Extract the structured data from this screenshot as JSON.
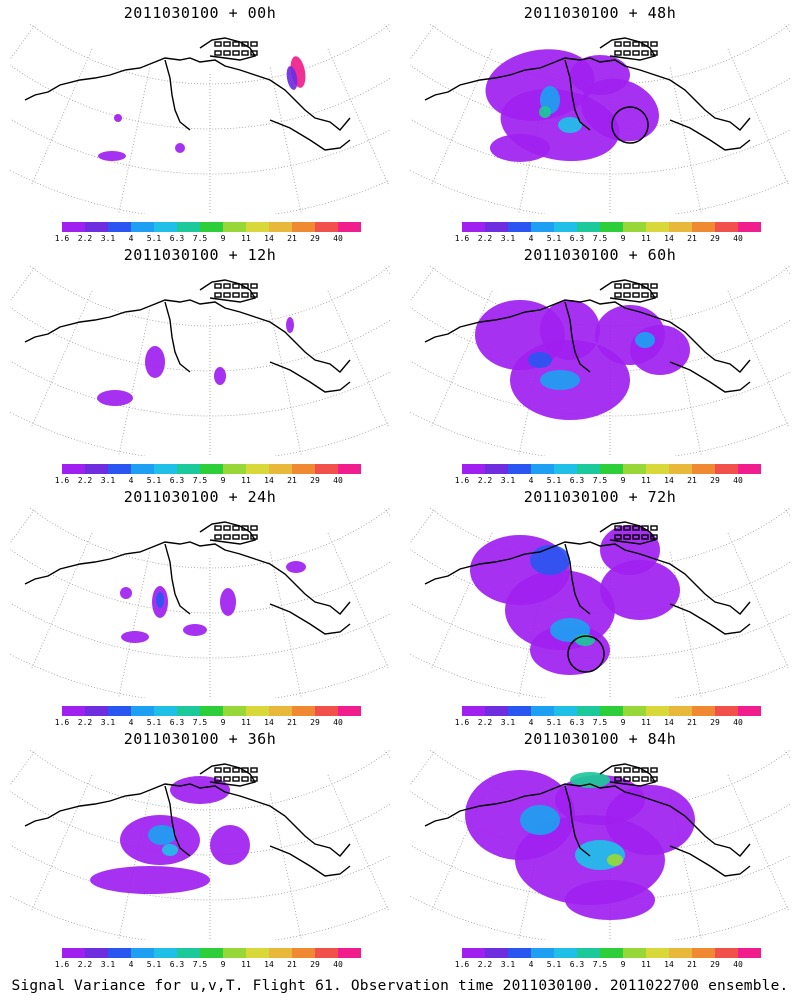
{
  "caption": "Signal Variance for u,v,T. Flight 61. Observation time 2011030100. 2011022700 ensemble.",
  "colorbar": {
    "labels": [
      "1.6",
      "2.2",
      "3.1",
      "4",
      "5.1",
      "6.3",
      "7.5",
      "9",
      "11",
      "14",
      "21",
      "29",
      "40"
    ],
    "colors": [
      "#a020f0",
      "#6f2de0",
      "#2a55f0",
      "#1e9ff2",
      "#1fbfe8",
      "#1dc89a",
      "#2ccf3a",
      "#97d838",
      "#d8d83a",
      "#e8b83a",
      "#f08a32",
      "#f2504a",
      "#f01e8c"
    ]
  },
  "chart_data": [
    {
      "type": "heatmap",
      "title": "2011030100 + 00h",
      "lead_hours": 0,
      "colorbar_labels": [
        "1.6",
        "2.2",
        "3.1",
        "4",
        "5.1",
        "6.3",
        "7.5",
        "9",
        "11",
        "14",
        "21",
        "29",
        "40"
      ],
      "max_variance_level": "40",
      "circled_feature": false
    },
    {
      "type": "heatmap",
      "title": "2011030100 + 48h",
      "lead_hours": 48,
      "colorbar_labels": [
        "1.6",
        "2.2",
        "3.1",
        "4",
        "5.1",
        "6.3",
        "7.5",
        "9",
        "11",
        "14",
        "21",
        "29",
        "40"
      ],
      "max_variance_level": "5.1",
      "circled_feature": true
    },
    {
      "type": "heatmap",
      "title": "2011030100 + 12h",
      "lead_hours": 12,
      "colorbar_labels": [
        "1.6",
        "2.2",
        "3.1",
        "4",
        "5.1",
        "6.3",
        "7.5",
        "9",
        "11",
        "14",
        "21",
        "29",
        "40"
      ],
      "max_variance_level": "1.6",
      "circled_feature": false
    },
    {
      "type": "heatmap",
      "title": "2011030100 + 60h",
      "lead_hours": 60,
      "colorbar_labels": [
        "1.6",
        "2.2",
        "3.1",
        "4",
        "5.1",
        "6.3",
        "7.5",
        "9",
        "11",
        "14",
        "21",
        "29",
        "40"
      ],
      "max_variance_level": "5.1",
      "circled_feature": false
    },
    {
      "type": "heatmap",
      "title": "2011030100 + 24h",
      "lead_hours": 24,
      "colorbar_labels": [
        "1.6",
        "2.2",
        "3.1",
        "4",
        "5.1",
        "6.3",
        "7.5",
        "9",
        "11",
        "14",
        "21",
        "29",
        "40"
      ],
      "max_variance_level": "2.2",
      "circled_feature": false
    },
    {
      "type": "heatmap",
      "title": "2011030100 + 72h",
      "lead_hours": 72,
      "colorbar_labels": [
        "1.6",
        "2.2",
        "3.1",
        "4",
        "5.1",
        "6.3",
        "7.5",
        "9",
        "11",
        "14",
        "21",
        "29",
        "40"
      ],
      "max_variance_level": "6.3",
      "circled_feature": true
    },
    {
      "type": "heatmap",
      "title": "2011030100 + 36h",
      "lead_hours": 36,
      "colorbar_labels": [
        "1.6",
        "2.2",
        "3.1",
        "4",
        "5.1",
        "6.3",
        "7.5",
        "9",
        "11",
        "14",
        "21",
        "29",
        "40"
      ],
      "max_variance_level": "4",
      "circled_feature": false
    },
    {
      "type": "heatmap",
      "title": "2011030100 + 84h",
      "lead_hours": 84,
      "colorbar_labels": [
        "1.6",
        "2.2",
        "3.1",
        "4",
        "5.1",
        "6.3",
        "7.5",
        "9",
        "11",
        "14",
        "21",
        "29",
        "40"
      ],
      "max_variance_level": "9",
      "circled_feature": false
    }
  ]
}
